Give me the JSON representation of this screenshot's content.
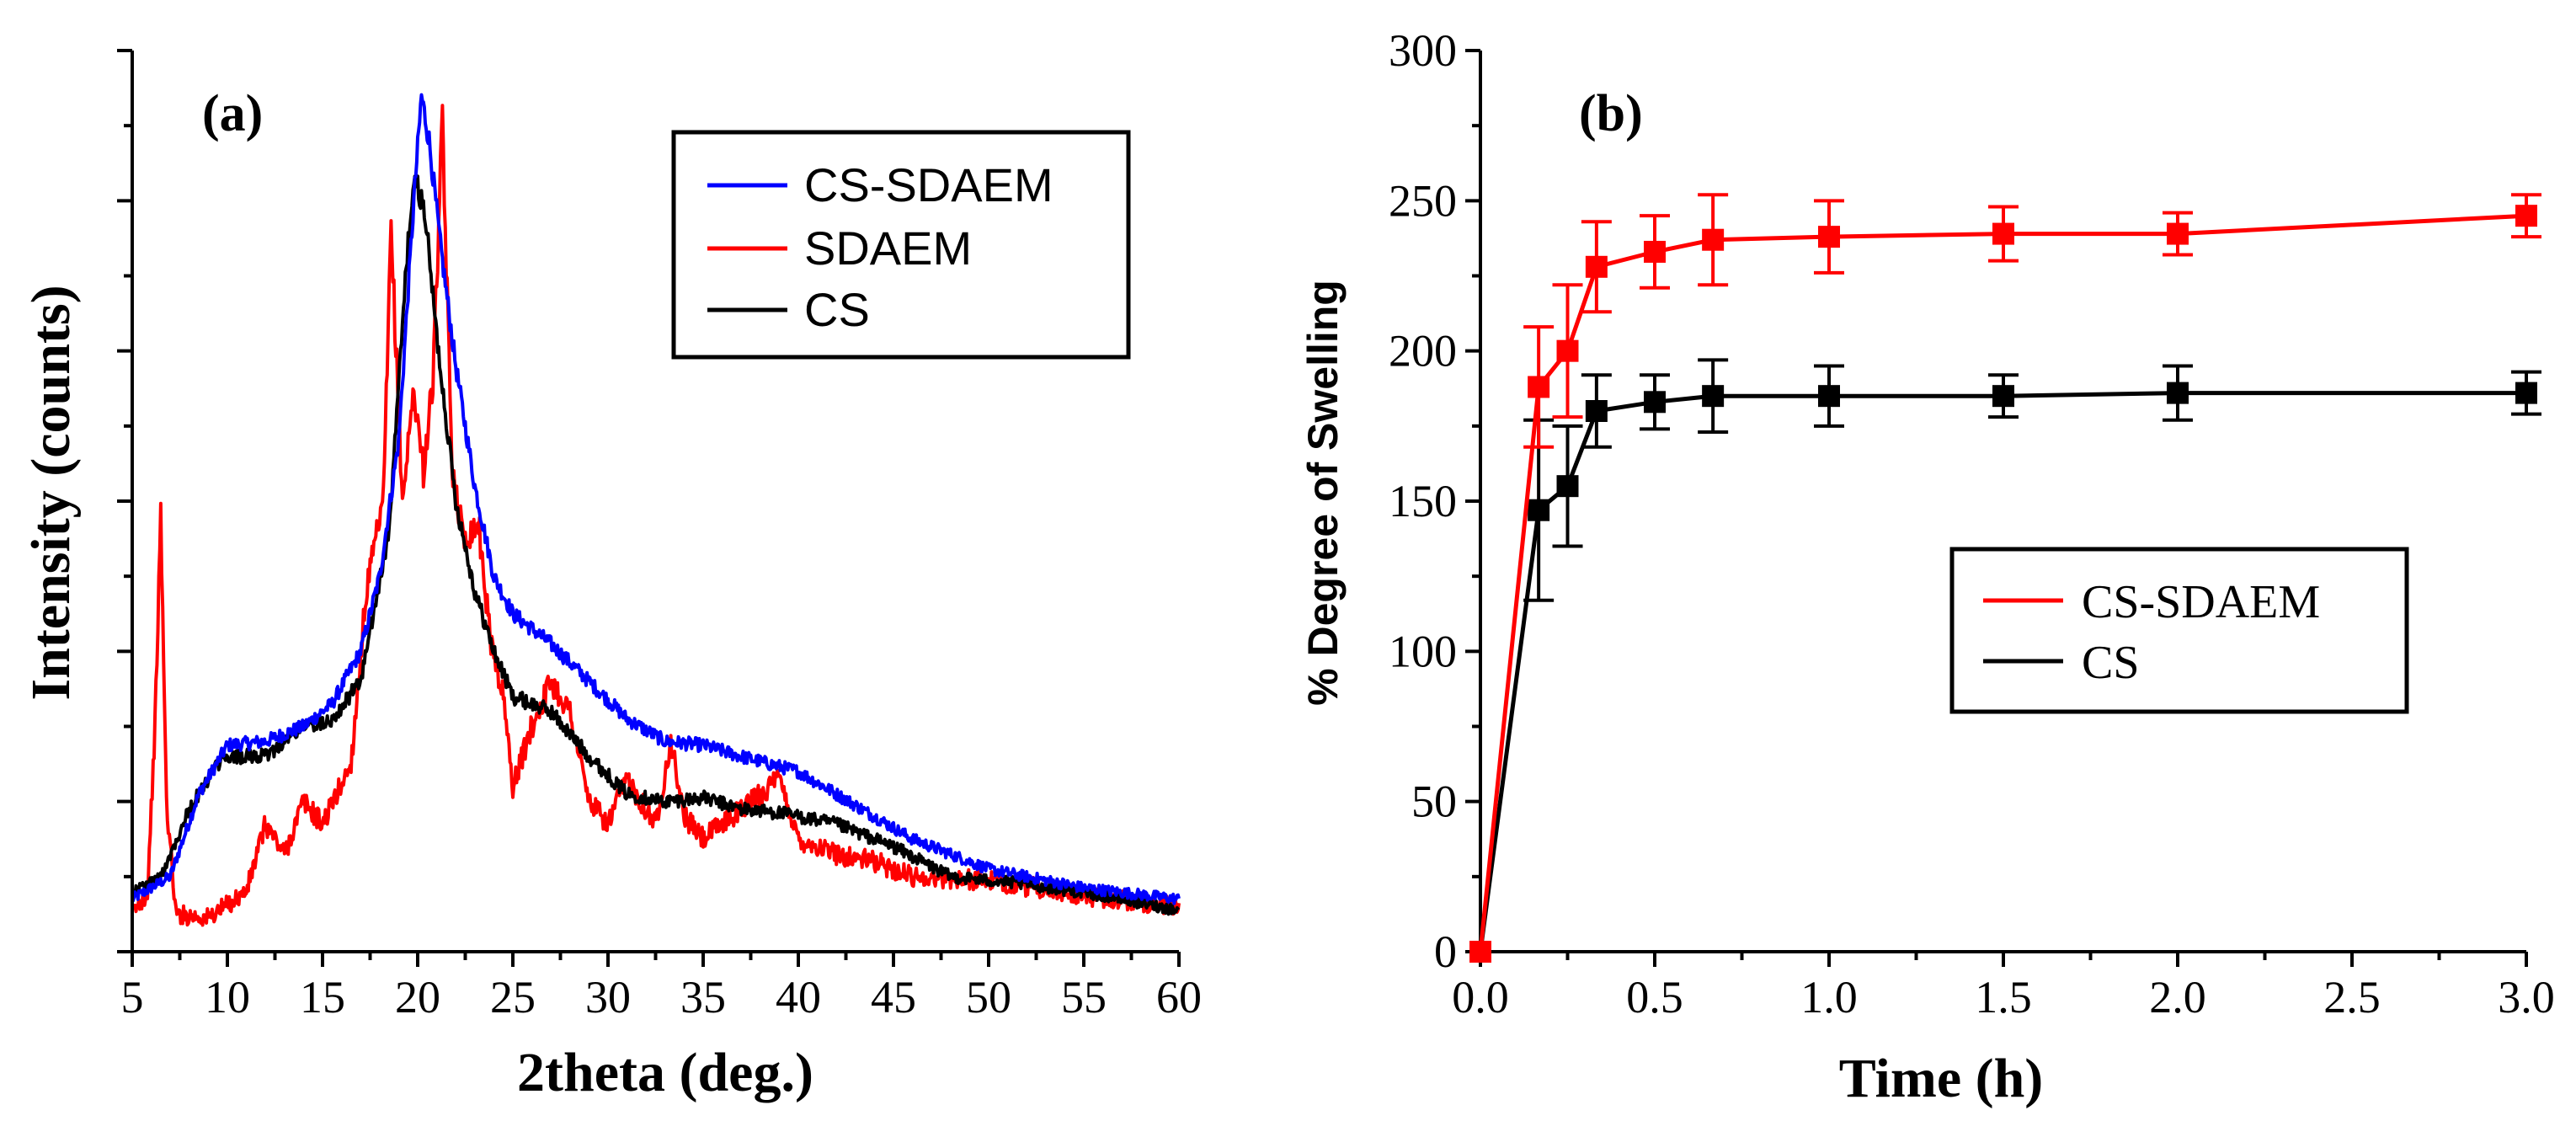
{
  "chart_data": [
    {
      "panel_label": "(a)",
      "type": "line",
      "xlabel": "2theta (deg.)",
      "ylabel": "Intensity (counts)",
      "xlim": [
        5,
        60
      ],
      "ylim": [
        0,
        12
      ],
      "x_ticks": [
        "5",
        "10",
        "15",
        "20",
        "25",
        "30",
        "35",
        "40",
        "45",
        "50",
        "55",
        "60"
      ],
      "y_tick_labels_shown": false,
      "legend": {
        "position": "top-right",
        "entries": [
          "CS-SDAEM",
          "SDAEM",
          "CS"
        ]
      },
      "series": [
        {
          "name": "CS-SDAEM",
          "color": "#0000ff",
          "profile": [
            [
              5,
              0.7
            ],
            [
              7,
              1.0
            ],
            [
              8.5,
              2.1
            ],
            [
              10,
              2.75
            ],
            [
              12,
              2.8
            ],
            [
              14,
              3.0
            ],
            [
              15.5,
              3.3
            ],
            [
              17,
              4.0
            ],
            [
              18,
              5.0
            ],
            [
              19,
              6.8
            ],
            [
              19.8,
              10.0
            ],
            [
              20.2,
              11.4
            ],
            [
              20.6,
              10.8
            ],
            [
              21.2,
              9.4
            ],
            [
              22,
              7.8
            ],
            [
              23,
              6.2
            ],
            [
              24,
              5.0
            ],
            [
              25,
              4.5
            ],
            [
              27,
              4.1
            ],
            [
              29,
              3.6
            ],
            [
              31,
              3.1
            ],
            [
              33,
              2.8
            ],
            [
              35,
              2.75
            ],
            [
              37,
              2.6
            ],
            [
              40,
              2.4
            ],
            [
              43,
              1.95
            ],
            [
              46,
              1.5
            ],
            [
              50,
              1.1
            ],
            [
              55,
              0.85
            ],
            [
              60,
              0.7
            ]
          ]
        },
        {
          "name": "SDAEM",
          "color": "#ff0000",
          "profile": [
            [
              5,
              0.5
            ],
            [
              5.8,
              0.8
            ],
            [
              6.2,
              3.0
            ],
            [
              6.5,
              5.8
            ],
            [
              6.8,
              2.0
            ],
            [
              7.3,
              0.5
            ],
            [
              9,
              0.45
            ],
            [
              11,
              0.8
            ],
            [
              12,
              1.7
            ],
            [
              13,
              1.3
            ],
            [
              14,
              2.0
            ],
            [
              15,
              1.7
            ],
            [
              16.5,
              2.5
            ],
            [
              17.3,
              4.8
            ],
            [
              18.2,
              6.0
            ],
            [
              18.6,
              9.6
            ],
            [
              19.2,
              6.0
            ],
            [
              19.8,
              7.5
            ],
            [
              20.3,
              6.4
            ],
            [
              20.8,
              7.6
            ],
            [
              21.3,
              11.0
            ],
            [
              21.8,
              6.5
            ],
            [
              22.4,
              5.5
            ],
            [
              23.2,
              5.7
            ],
            [
              23.8,
              4.2
            ],
            [
              24.5,
              3.4
            ],
            [
              25,
              2.2
            ],
            [
              26,
              3.0
            ],
            [
              27,
              3.6
            ],
            [
              28,
              3.2
            ],
            [
              29,
              2.0
            ],
            [
              30,
              1.7
            ],
            [
              31,
              2.3
            ],
            [
              32.5,
              1.7
            ],
            [
              33.3,
              2.8
            ],
            [
              34,
              1.8
            ],
            [
              35,
              1.5
            ],
            [
              37,
              1.9
            ],
            [
              39,
              2.3
            ],
            [
              40,
              1.5
            ],
            [
              42,
              1.3
            ],
            [
              44,
              1.2
            ],
            [
              46,
              1.0
            ],
            [
              50,
              0.95
            ],
            [
              55,
              0.75
            ],
            [
              60,
              0.6
            ]
          ]
        },
        {
          "name": "CS",
          "color": "#000000",
          "profile": [
            [
              5,
              0.8
            ],
            [
              6.5,
              1.0
            ],
            [
              8,
              1.9
            ],
            [
              9.5,
              2.5
            ],
            [
              10.5,
              2.6
            ],
            [
              12,
              2.6
            ],
            [
              14,
              3.0
            ],
            [
              15.5,
              3.1
            ],
            [
              17,
              3.6
            ],
            [
              18.5,
              5.6
            ],
            [
              19.5,
              9.5
            ],
            [
              19.9,
              10.3
            ],
            [
              20.4,
              9.8
            ],
            [
              21,
              8.2
            ],
            [
              22,
              6.0
            ],
            [
              23,
              4.8
            ],
            [
              24,
              4.0
            ],
            [
              25,
              3.4
            ],
            [
              27,
              3.2
            ],
            [
              29,
              2.6
            ],
            [
              31,
              2.1
            ],
            [
              33,
              2.0
            ],
            [
              35,
              2.05
            ],
            [
              37,
              1.9
            ],
            [
              39,
              1.85
            ],
            [
              42,
              1.7
            ],
            [
              45,
              1.4
            ],
            [
              48,
              1.0
            ],
            [
              52,
              0.9
            ],
            [
              56,
              0.75
            ],
            [
              60,
              0.55
            ]
          ]
        }
      ]
    },
    {
      "panel_label": "(b)",
      "type": "line",
      "xlabel": "Time (h)",
      "ylabel": "% Degree of Swelling",
      "xlim": [
        0,
        3
      ],
      "ylim": [
        0,
        300
      ],
      "x_ticks": [
        "0.0",
        "0.5",
        "1.0",
        "1.5",
        "2.0",
        "2.5",
        "3.0"
      ],
      "y_ticks": [
        "0",
        "50",
        "100",
        "150",
        "200",
        "250",
        "300"
      ],
      "legend": {
        "position": "center-right",
        "entries": [
          "CS-SDAEM",
          "CS"
        ]
      },
      "series": [
        {
          "name": "CS-SDAEM",
          "color": "#ff0000",
          "marker": "square",
          "x": [
            0,
            0.167,
            0.25,
            0.333,
            0.5,
            0.667,
            1.0,
            1.5,
            2.0,
            3.0
          ],
          "y": [
            0,
            188,
            200,
            228,
            233,
            237,
            238,
            239,
            239,
            245
          ],
          "error": [
            0,
            20,
            22,
            15,
            12,
            15,
            12,
            9,
            7,
            7
          ]
        },
        {
          "name": "CS",
          "color": "#000000",
          "marker": "square",
          "x": [
            0,
            0.167,
            0.25,
            0.333,
            0.5,
            0.667,
            1.0,
            1.5,
            2.0,
            3.0
          ],
          "y": [
            0,
            147,
            155,
            180,
            183,
            185,
            185,
            185,
            186,
            186
          ],
          "error": [
            0,
            30,
            20,
            12,
            9,
            12,
            10,
            7,
            9,
            7
          ]
        }
      ]
    }
  ]
}
